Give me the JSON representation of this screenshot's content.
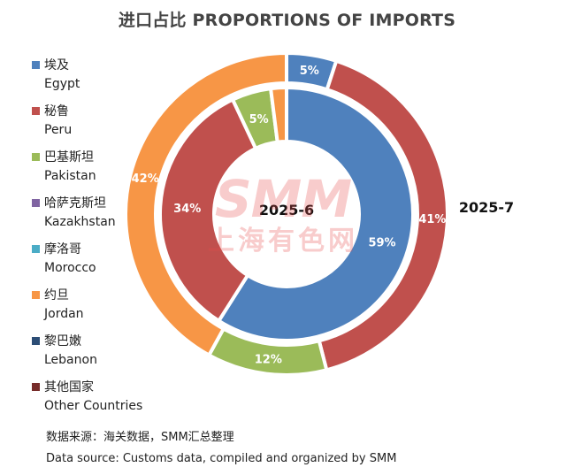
{
  "chart_data": {
    "type": "pie",
    "title": "进口占比 PROPORTIONS OF IMPORTS",
    "categories": [
      {
        "zh": "埃及",
        "en": "Egypt",
        "color": "#4f81bd"
      },
      {
        "zh": "秘鲁",
        "en": "Peru",
        "color": "#c0504d"
      },
      {
        "zh": "巴基斯坦",
        "en": "Pakistan",
        "color": "#9bbb59"
      },
      {
        "zh": "哈萨克斯坦",
        "en": "Kazakhstan",
        "color": "#8064a2"
      },
      {
        "zh": "摩洛哥",
        "en": "Morocco",
        "color": "#4bacc6"
      },
      {
        "zh": "约旦",
        "en": "Jordan",
        "color": "#f79646"
      },
      {
        "zh": "黎巴嫩",
        "en": "Lebanon",
        "color": "#2c4d75"
      },
      {
        "zh": "其他国家",
        "en": "Other Countries",
        "color": "#772c2a"
      }
    ],
    "series": [
      {
        "name": "2025-6",
        "ring": "inner",
        "values": [
          59,
          34,
          5,
          0,
          0,
          2,
          0,
          0
        ],
        "labels": [
          "59%",
          "34%",
          "5%",
          "",
          "",
          "",
          "",
          ""
        ]
      },
      {
        "name": "2025-7",
        "ring": "outer",
        "values": [
          5,
          41,
          12,
          0,
          0,
          42,
          0,
          0
        ],
        "labels": [
          "5%",
          "41%",
          "12%",
          "",
          "",
          "42%",
          "",
          ""
        ]
      }
    ],
    "legend_position": "left"
  },
  "watermark": {
    "main": "SMM",
    "sub": "上海有色网"
  },
  "source": {
    "zh": "数据来源：海关数据，SMM汇总整理",
    "en": "Data source: Customs data, compiled and organized by SMM"
  }
}
